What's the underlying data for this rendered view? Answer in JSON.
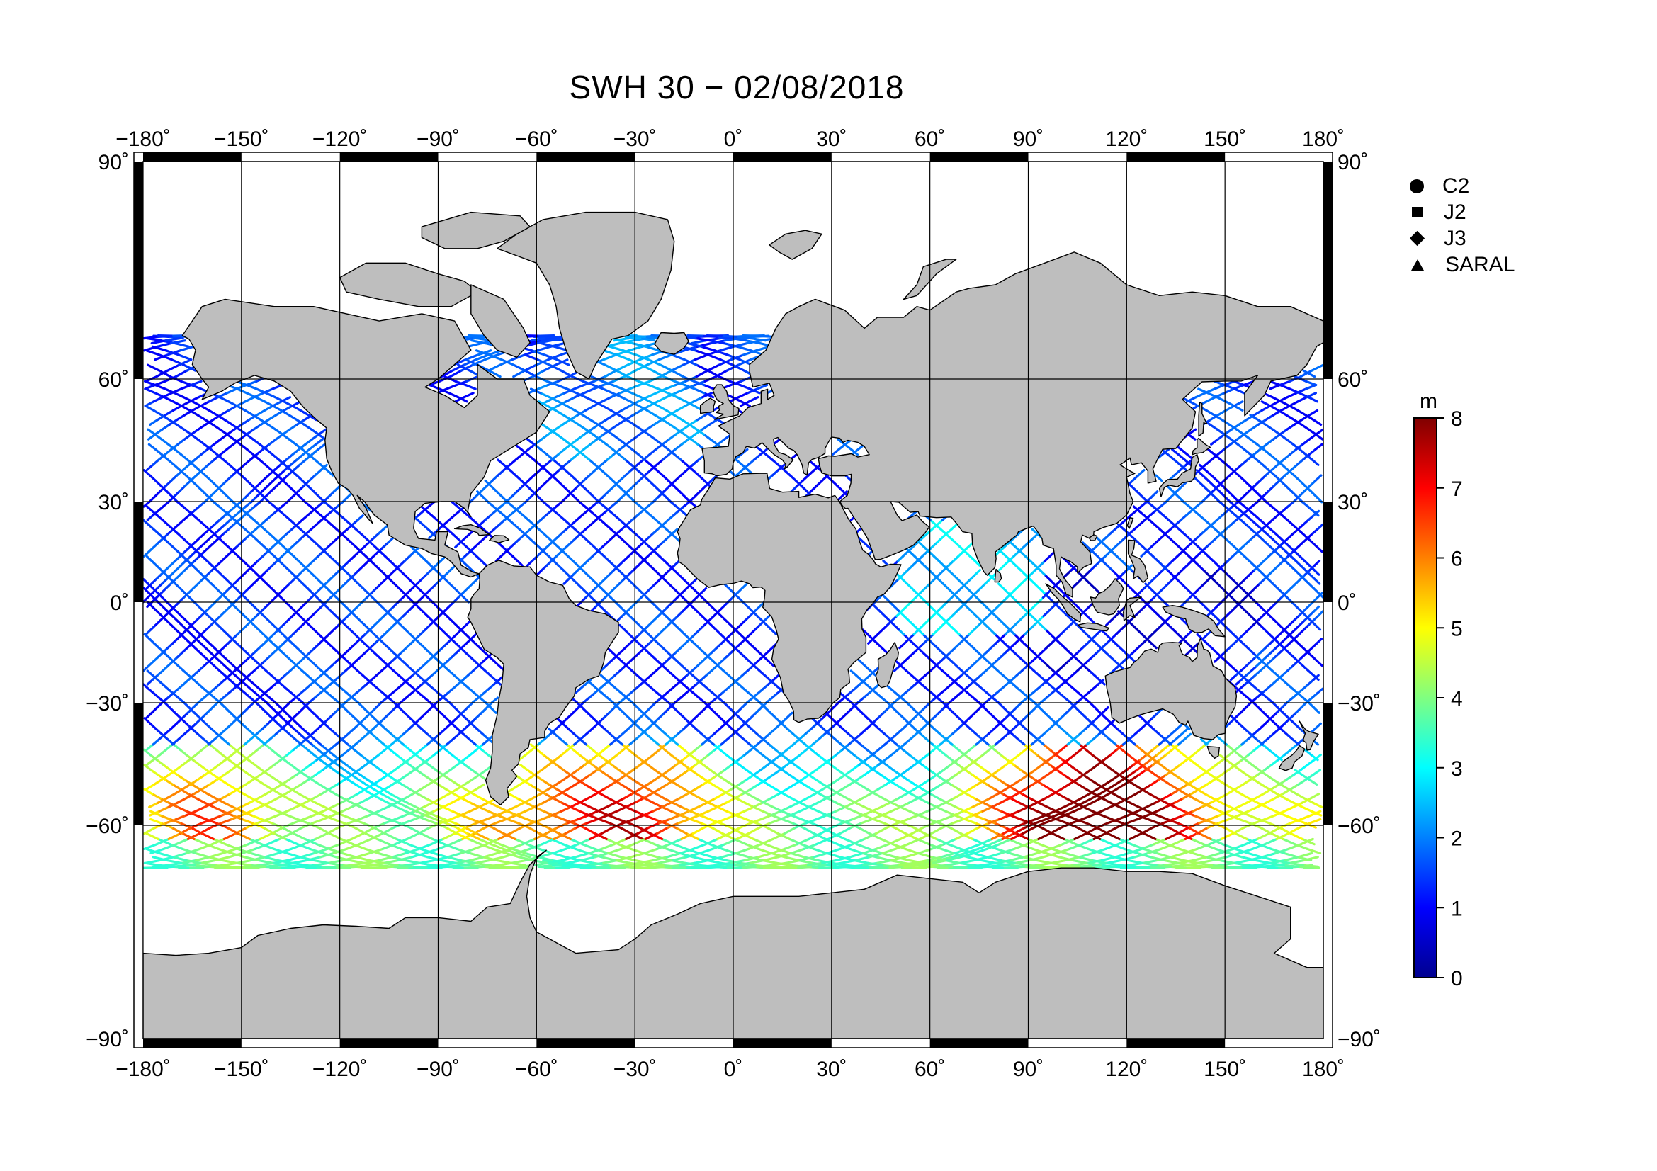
{
  "title": "SWH 30 − 02/08/2018",
  "map": {
    "lon_range": [
      -180,
      180
    ],
    "lat_range": [
      -90,
      90
    ],
    "lon_ticks": [
      -180,
      -150,
      -120,
      -90,
      -60,
      -30,
      0,
      30,
      60,
      90,
      120,
      150,
      180
    ],
    "lat_ticks": [
      90,
      60,
      30,
      0,
      -30,
      -60,
      -90
    ],
    "lon_tick_labels": [
      "−180˚",
      "−150˚",
      "−120˚",
      "−90˚",
      "−60˚",
      "−30˚",
      "0˚",
      "30˚",
      "60˚",
      "90˚",
      "120˚",
      "150˚",
      "180˚"
    ],
    "lat_tick_labels": [
      "90˚",
      "60˚",
      "30˚",
      "0˚",
      "−30˚",
      "−60˚",
      "−90˚"
    ],
    "land_color": "#bebebe",
    "ocean_color": "#ffffff",
    "grid": true,
    "projection": "Miller cylindrical"
  },
  "legend": {
    "placement": "top-right",
    "items": [
      {
        "label": "C2",
        "marker": "circle"
      },
      {
        "label": "J2",
        "marker": "square"
      },
      {
        "label": "J3",
        "marker": "diamond"
      },
      {
        "label": "SARAL",
        "marker": "triangle"
      }
    ]
  },
  "colorbar": {
    "unit": "m",
    "min": 0,
    "max": 8,
    "tick_labels": [
      "0",
      "1",
      "2",
      "3",
      "4",
      "5",
      "6",
      "7",
      "8"
    ],
    "colormap": [
      "#00008f",
      "#0000ff",
      "#0080ff",
      "#00ffff",
      "#80ff80",
      "#ffff00",
      "#ff8000",
      "#ff0000",
      "#800000"
    ]
  }
}
